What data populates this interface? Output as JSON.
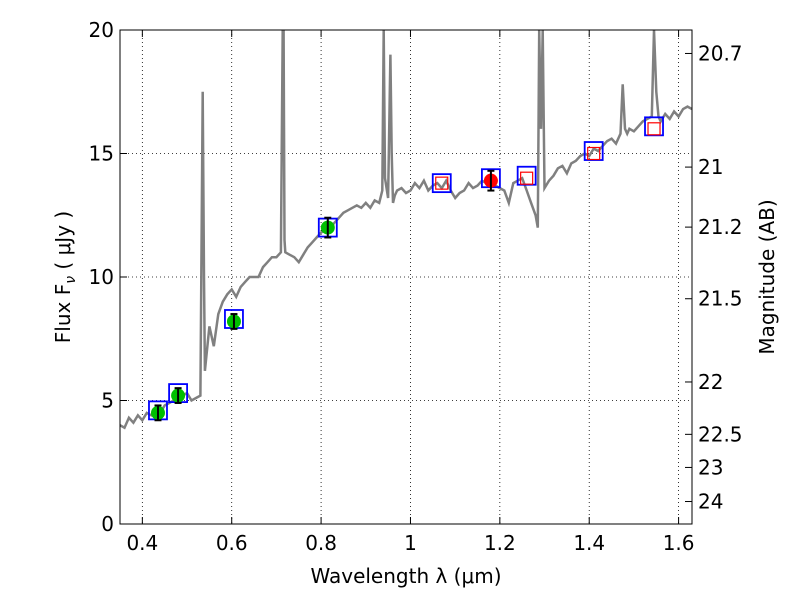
{
  "chart_data": {
    "type": "line",
    "title": "",
    "xlabel": "Wavelength  λ (μm)",
    "ylabel": "Flux  F",
    "ylabel_sub": "ν",
    "ylabel_unit": " ( μJy )",
    "y2label": "Magnitude (AB)",
    "xlim": [
      0.35,
      1.63
    ],
    "ylim": [
      0,
      20
    ],
    "grid": true,
    "x_ticks": [
      0.4,
      0.6,
      0.8,
      1.0,
      1.2,
      1.4,
      1.6
    ],
    "x_tick_labels": [
      "0.4",
      "0.6",
      "0.8",
      "1",
      "1.2",
      "1.4",
      "1.6"
    ],
    "y_ticks": [
      0,
      5,
      10,
      15,
      20
    ],
    "y_tick_labels": [
      "0",
      "5",
      "10",
      "15",
      "20"
    ],
    "y2_ticks": [
      {
        "label": "20.7",
        "flux": 19.05
      },
      {
        "label": "21",
        "flux": 14.45
      },
      {
        "label": "21.2",
        "flux": 12.02
      },
      {
        "label": "21.5",
        "flux": 9.12
      },
      {
        "label": "22",
        "flux": 5.75
      },
      {
        "label": "22.5",
        "flux": 3.63
      },
      {
        "label": "23",
        "flux": 2.29
      },
      {
        "label": "24",
        "flux": 0.91
      }
    ],
    "series": [
      {
        "color": "#808080",
        "x": [
          0.35,
          0.36,
          0.37,
          0.38,
          0.39,
          0.4,
          0.41,
          0.42,
          0.43,
          0.44,
          0.45,
          0.46,
          0.47,
          0.48,
          0.49,
          0.5,
          0.51,
          0.52,
          0.53,
          0.532,
          0.535,
          0.538,
          0.54,
          0.55,
          0.56,
          0.57,
          0.58,
          0.59,
          0.6,
          0.61,
          0.62,
          0.63,
          0.64,
          0.65,
          0.66,
          0.67,
          0.68,
          0.69,
          0.7,
          0.71,
          0.714,
          0.716,
          0.718,
          0.72,
          0.73,
          0.74,
          0.75,
          0.76,
          0.77,
          0.78,
          0.79,
          0.8,
          0.81,
          0.82,
          0.83,
          0.84,
          0.85,
          0.86,
          0.87,
          0.88,
          0.89,
          0.9,
          0.91,
          0.92,
          0.93,
          0.937,
          0.94,
          0.943,
          0.95,
          0.955,
          0.958,
          0.961,
          0.965,
          0.97,
          0.98,
          0.99,
          1.0,
          1.01,
          1.02,
          1.03,
          1.04,
          1.05,
          1.06,
          1.07,
          1.08,
          1.09,
          1.1,
          1.11,
          1.12,
          1.13,
          1.14,
          1.15,
          1.16,
          1.17,
          1.18,
          1.19,
          1.2,
          1.21,
          1.22,
          1.23,
          1.24,
          1.25,
          1.26,
          1.27,
          1.28,
          1.285,
          1.288,
          1.292,
          1.296,
          1.3,
          1.31,
          1.32,
          1.33,
          1.34,
          1.35,
          1.36,
          1.37,
          1.38,
          1.39,
          1.4,
          1.41,
          1.42,
          1.43,
          1.44,
          1.45,
          1.46,
          1.47,
          1.475,
          1.48,
          1.485,
          1.49,
          1.5,
          1.51,
          1.52,
          1.53,
          1.54,
          1.545,
          1.55,
          1.555,
          1.56,
          1.57,
          1.58,
          1.59,
          1.6,
          1.61,
          1.62,
          1.63
        ],
        "values": [
          4.0,
          3.9,
          4.3,
          4.1,
          4.4,
          4.2,
          4.5,
          4.4,
          4.6,
          4.5,
          4.8,
          4.9,
          5.0,
          5.1,
          5.2,
          5.3,
          5.0,
          5.1,
          5.2,
          10.0,
          17.5,
          10.0,
          6.2,
          8.0,
          7.2,
          8.5,
          9.0,
          9.3,
          9.5,
          9.2,
          9.6,
          9.8,
          10.0,
          10.0,
          10.0,
          10.4,
          10.6,
          10.8,
          10.8,
          11.0,
          20.0,
          20.0,
          11.5,
          11.0,
          10.9,
          10.8,
          10.6,
          10.9,
          11.2,
          11.4,
          11.6,
          11.8,
          11.9,
          12.0,
          12.2,
          12.4,
          12.6,
          12.7,
          12.8,
          12.9,
          12.8,
          13.0,
          12.8,
          13.1,
          13.0,
          13.5,
          20.0,
          14.0,
          13.2,
          19.0,
          15.0,
          13.0,
          13.3,
          13.5,
          13.6,
          13.4,
          13.5,
          13.8,
          13.6,
          13.9,
          13.5,
          13.7,
          13.8,
          13.6,
          13.9,
          13.5,
          13.2,
          13.4,
          13.5,
          13.8,
          13.6,
          13.7,
          13.9,
          13.8,
          13.9,
          13.7,
          13.6,
          13.5,
          13.0,
          13.8,
          13.9,
          14.0,
          13.5,
          13.0,
          12.5,
          12.0,
          20.0,
          16.0,
          20.0,
          13.6,
          13.9,
          14.1,
          14.4,
          14.5,
          14.2,
          14.6,
          14.7,
          14.9,
          15.0,
          14.9,
          15.2,
          15.1,
          15.3,
          15.5,
          15.6,
          15.4,
          15.8,
          17.8,
          16.0,
          15.8,
          16.0,
          15.9,
          16.1,
          16.3,
          16.4,
          16.5,
          20.0,
          17.5,
          16.5,
          16.3,
          16.6,
          16.4,
          16.7,
          16.5,
          16.8,
          16.9,
          16.8
        ]
      }
    ],
    "model_points": {
      "color": "#0000ff",
      "x": [
        0.435,
        0.48,
        0.605,
        0.815,
        1.07,
        1.18,
        1.26,
        1.41,
        1.545
      ],
      "values": [
        4.6,
        5.3,
        8.3,
        12.0,
        13.8,
        14.0,
        14.1,
        15.1,
        16.1
      ]
    },
    "photometry_green": {
      "color": "#00bf00",
      "x": [
        0.435,
        0.48,
        0.605,
        0.815
      ],
      "values": [
        4.5,
        5.2,
        8.2,
        12.0
      ],
      "errors": [
        0.3,
        0.3,
        0.3,
        0.4
      ]
    },
    "photometry_red": {
      "color": "#ff0000",
      "x": [
        1.18
      ],
      "values": [
        13.9
      ],
      "errors": [
        0.4
      ]
    },
    "open_points_red": {
      "color": "#ff0000",
      "x": [
        1.07,
        1.26,
        1.41,
        1.545
      ],
      "values": [
        13.8,
        14.0,
        15.0,
        16.0
      ]
    }
  }
}
